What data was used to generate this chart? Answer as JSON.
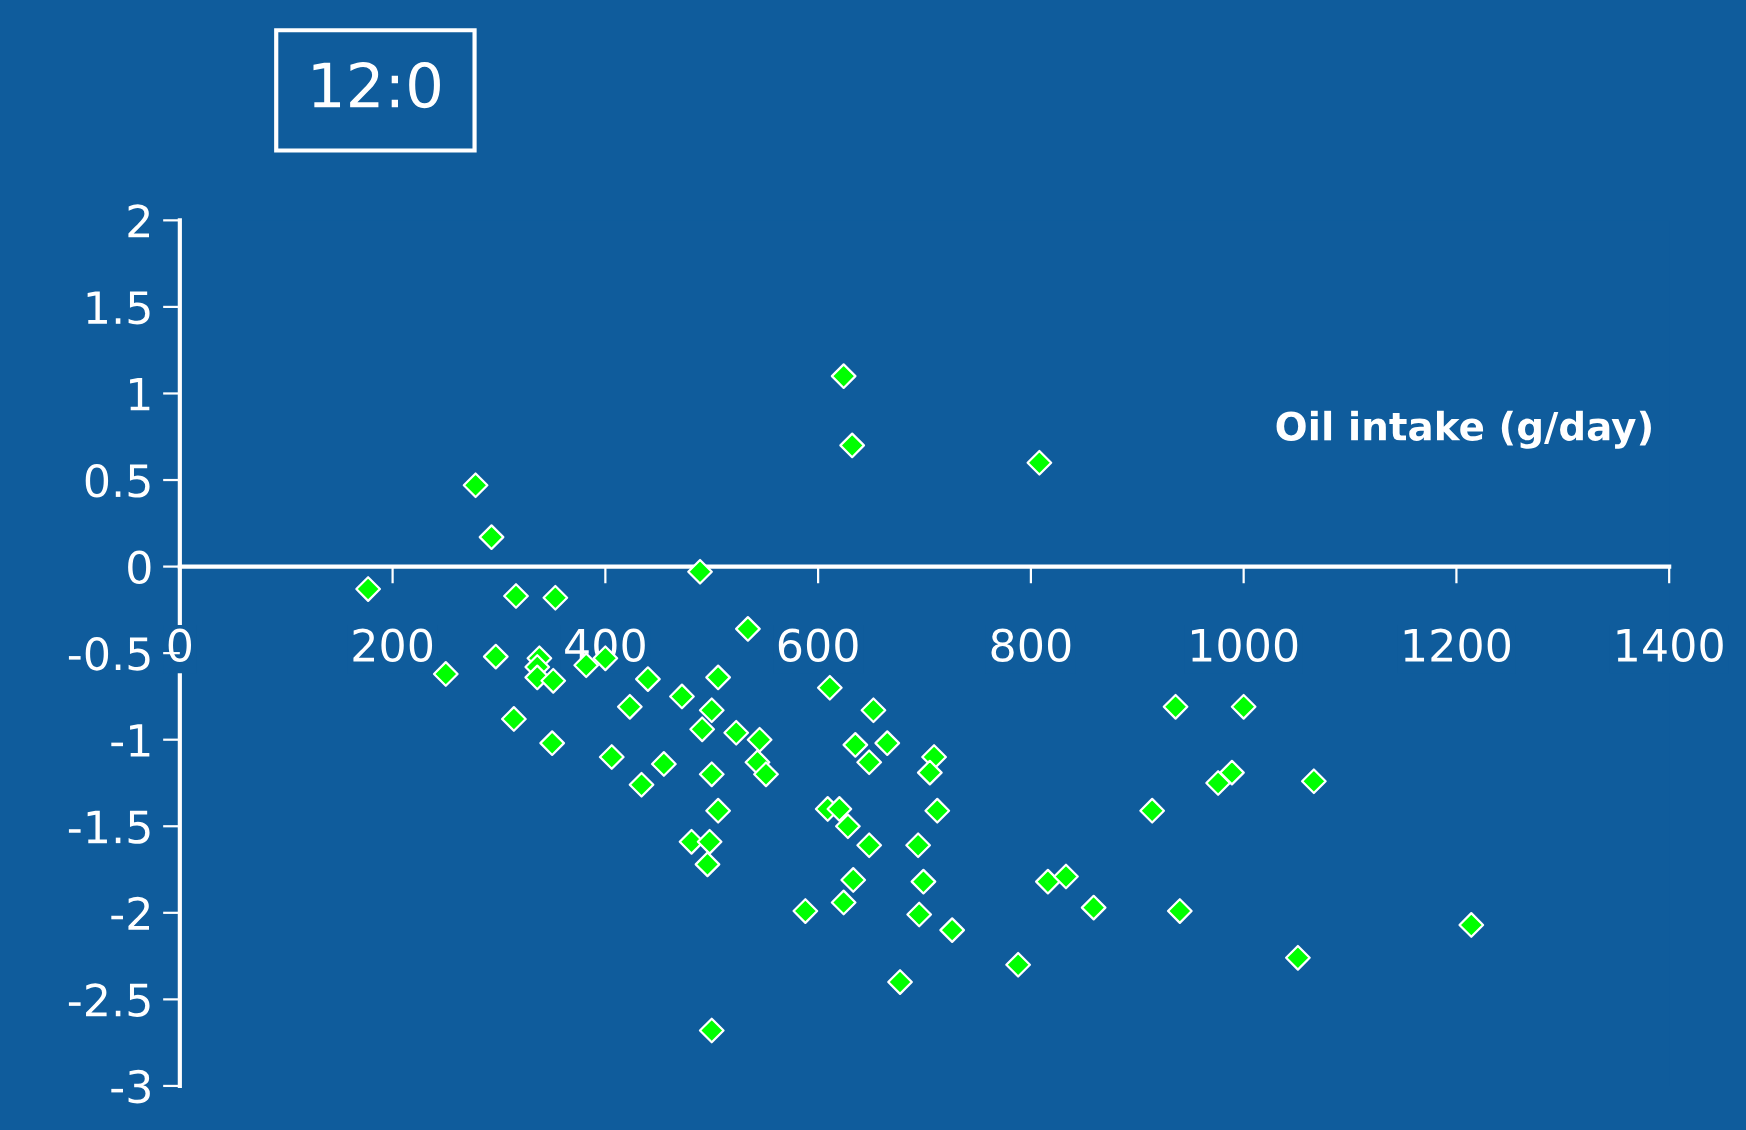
{
  "chart_data": {
    "type": "scatter",
    "title": "12:0",
    "xlabel": "Oil intake (g/day)",
    "x": [
      177,
      278,
      293,
      316,
      353,
      250,
      297,
      338,
      336,
      336,
      351,
      314,
      350,
      382,
      400,
      406,
      423,
      440,
      434,
      455,
      472,
      489,
      491,
      500,
      500,
      481,
      498,
      496,
      506,
      506,
      500,
      534,
      523,
      545,
      543,
      551,
      588,
      611,
      609,
      620,
      628,
      633,
      624,
      624,
      632,
      652,
      635,
      648,
      665,
      648,
      677,
      709,
      705,
      712,
      694,
      699,
      695,
      726,
      788,
      816,
      833,
      859,
      808,
      936,
      1000,
      914,
      976,
      989,
      1066,
      940,
      1051,
      1214
    ],
    "series": [
      {
        "color": "#00ff00",
        "values": [
          -0.13,
          0.47,
          0.17,
          -0.17,
          -0.18,
          -0.62,
          -0.52,
          -0.53,
          -0.58,
          -0.64,
          -0.66,
          -0.88,
          -1.02,
          -0.57,
          -0.53,
          -1.1,
          -0.81,
          -0.65,
          -1.26,
          -1.14,
          -0.75,
          -0.03,
          -0.94,
          -0.83,
          -1.2,
          -1.59,
          -1.59,
          -1.72,
          -1.41,
          -0.64,
          -2.68,
          -0.36,
          -0.96,
          -1.0,
          -1.13,
          -1.2,
          -1.99,
          -0.7,
          -1.4,
          -1.4,
          -1.5,
          -1.81,
          -1.94,
          1.1,
          0.7,
          -0.83,
          -1.03,
          -1.13,
          -1.02,
          -1.61,
          -2.4,
          -1.1,
          -1.19,
          -1.41,
          -1.61,
          -1.82,
          -2.01,
          -2.1,
          -2.3,
          -1.82,
          -1.79,
          -1.97,
          0.6,
          -0.81,
          -0.81,
          -1.41,
          -1.25,
          -1.19,
          -1.24,
          -1.99,
          -2.26,
          -2.07
        ]
      }
    ],
    "xlim": [
      0,
      1400
    ],
    "xticks": [
      0,
      200,
      400,
      600,
      800,
      1000,
      1200,
      1400
    ],
    "ylim": [
      -3,
      2
    ],
    "yticks": [
      -3,
      -2.5,
      -2,
      -1.5,
      -1,
      -0.5,
      0,
      0.5,
      1,
      1.5,
      2
    ],
    "marker": "diamond",
    "grid": false,
    "legend": false
  }
}
